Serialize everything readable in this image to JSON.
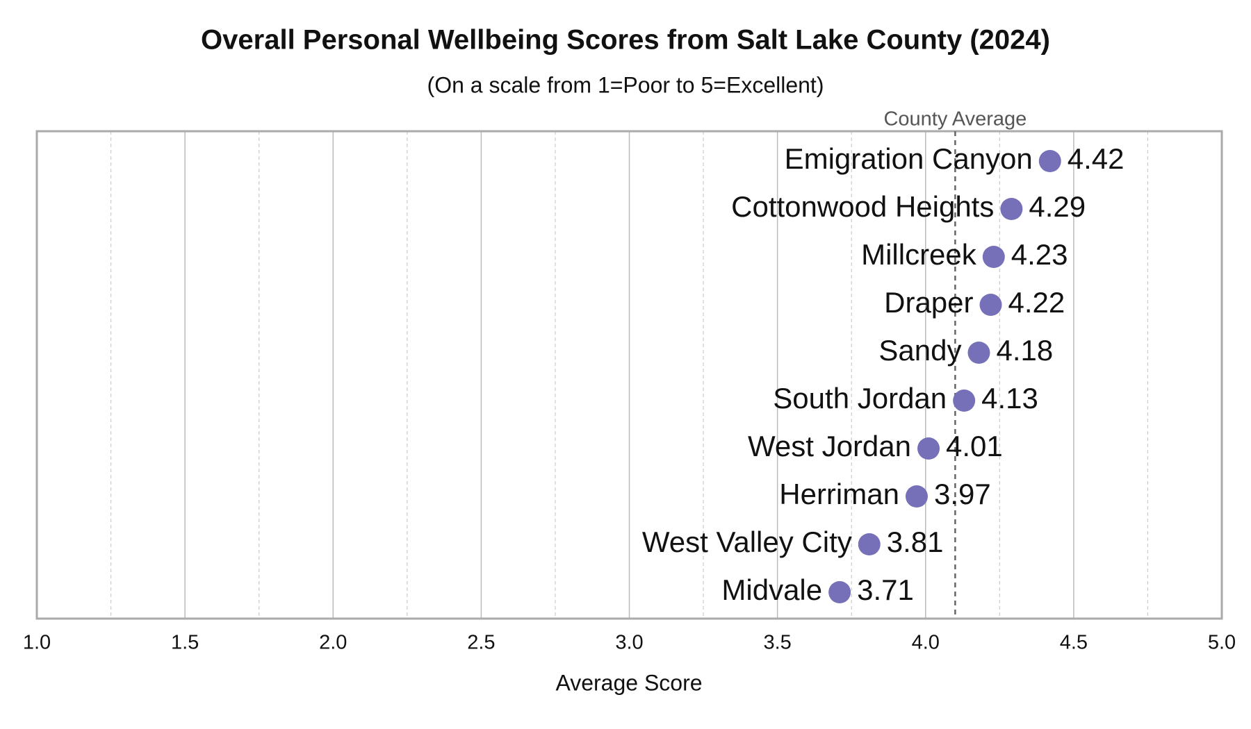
{
  "chart_data": {
    "type": "dot",
    "title": "Overall Personal Wellbeing Scores from Salt Lake County (2024)",
    "subtitle": "(On a scale from 1=Poor to 5=Excellent)",
    "x_label": "Average Score",
    "categories": [
      "Emigration Canyon",
      "Cottonwood Heights",
      "Millcreek",
      "Draper",
      "Sandy",
      "South Jordan",
      "West Jordan",
      "Herriman",
      "West Valley City",
      "Midvale"
    ],
    "values": [
      4.42,
      4.29,
      4.23,
      4.22,
      4.18,
      4.13,
      4.01,
      3.97,
      3.81,
      3.71
    ],
    "color": "#7570b8",
    "xlim": [
      1,
      5
    ],
    "xticks": [
      {
        "value": 1,
        "label": "1.0"
      },
      {
        "value": 1.5,
        "label": "1.5"
      },
      {
        "value": 2,
        "label": "2.0"
      },
      {
        "value": 2.5,
        "label": "2.5"
      },
      {
        "value": 3,
        "label": "3.0"
      },
      {
        "value": 3.5,
        "label": "3.5"
      },
      {
        "value": 4,
        "label": "4.0"
      },
      {
        "value": 4.5,
        "label": "4.5"
      },
      {
        "value": 5,
        "label": "5.0"
      }
    ],
    "minor_xticks": [
      1.25,
      1.75,
      2.25,
      2.75,
      3.25,
      3.75,
      4.25,
      4.75
    ],
    "grid": true,
    "reference_line": {
      "label": "County Average",
      "value": 4.1
    }
  }
}
